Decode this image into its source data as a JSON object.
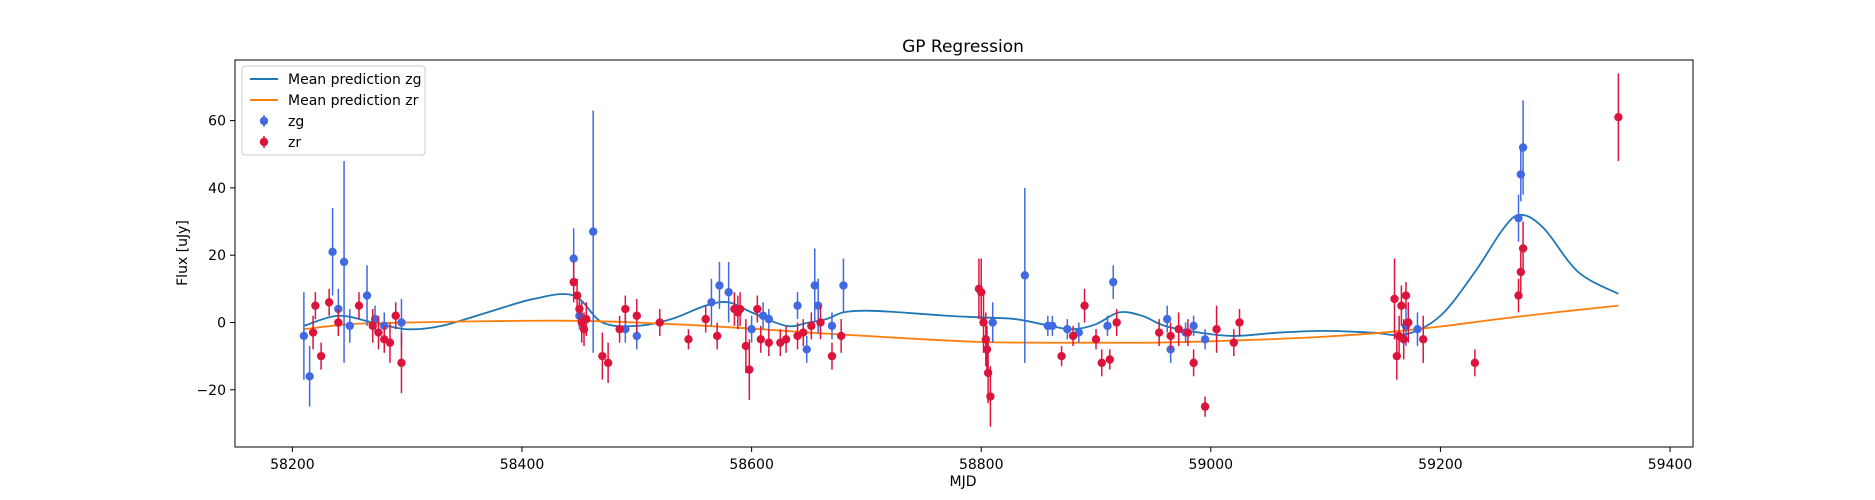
{
  "chart_data": {
    "type": "scatter",
    "title": "GP Regression",
    "xlabel": "MJD",
    "ylabel": "Flux [uJy]",
    "xlim": [
      58150,
      59420
    ],
    "ylim": [
      -37,
      78
    ],
    "x_ticks": [
      58200,
      58400,
      58600,
      58800,
      59000,
      59200,
      59400
    ],
    "y_ticks": [
      -20,
      0,
      20,
      40,
      60
    ],
    "grid": false,
    "legend_position": "top-left",
    "series": [
      {
        "name": "Mean prediction zg",
        "kind": "line",
        "color": "#1f77b4",
        "x": [
          58210,
          58240,
          58270,
          58300,
          58330,
          58370,
          58410,
          58445,
          58470,
          58500,
          58530,
          58560,
          58580,
          58600,
          58630,
          58650,
          58665,
          58680,
          58700,
          58730,
          58770,
          58800,
          58830,
          58860,
          58880,
          58900,
          58920,
          58940,
          58960,
          58990,
          59020,
          59060,
          59100,
          59140,
          59170,
          59200,
          59230,
          59255,
          59270,
          59290,
          59320,
          59355
        ],
        "y": [
          -1,
          2,
          0,
          -2,
          -1,
          3,
          7,
          8,
          0,
          -1,
          1,
          5,
          6,
          3,
          -1,
          0,
          1,
          3,
          3.5,
          3,
          2,
          1.5,
          1,
          -1,
          -2,
          -0.5,
          3,
          2,
          -1,
          -3,
          -4,
          -3,
          -2.5,
          -3,
          -3.5,
          2,
          15,
          28,
          32,
          28,
          15,
          8.5
        ]
      },
      {
        "name": "Mean prediction zr",
        "kind": "line",
        "color": "#ff7f0e",
        "x": [
          58210,
          58250,
          58300,
          58350,
          58400,
          58450,
          58500,
          58550,
          58600,
          58650,
          58700,
          58750,
          58800,
          58850,
          58900,
          58950,
          59000,
          59050,
          59100,
          59150,
          59200,
          59250,
          59300,
          59355
        ],
        "y": [
          -2,
          -0.5,
          0,
          0.3,
          0.5,
          0.5,
          0,
          -0.8,
          -1.8,
          -3,
          -4,
          -5,
          -5.8,
          -6,
          -6,
          -6,
          -5.6,
          -5,
          -4.2,
          -3,
          -1.2,
          1,
          3,
          5
        ]
      },
      {
        "name": "zg",
        "kind": "errorbar",
        "color": "#4169e1",
        "points": [
          [
            58210,
            -4,
            13
          ],
          [
            58215,
            -16,
            9
          ],
          [
            58235,
            21,
            13
          ],
          [
            58240,
            4,
            6
          ],
          [
            58245,
            18,
            30
          ],
          [
            58250,
            -1,
            5
          ],
          [
            58265,
            8,
            9
          ],
          [
            58272,
            1,
            4
          ],
          [
            58280,
            -1,
            4
          ],
          [
            58295,
            0,
            7
          ],
          [
            58445,
            19,
            9
          ],
          [
            58450,
            2,
            4
          ],
          [
            58462,
            27,
            36
          ],
          [
            58490,
            -2,
            4
          ],
          [
            58500,
            -4,
            4
          ],
          [
            58565,
            6,
            7
          ],
          [
            58572,
            11,
            7
          ],
          [
            58580,
            9,
            9
          ],
          [
            58600,
            -2,
            4
          ],
          [
            58610,
            2,
            4
          ],
          [
            58615,
            1,
            3
          ],
          [
            58640,
            5,
            4
          ],
          [
            58648,
            -8,
            4
          ],
          [
            58655,
            11,
            11
          ],
          [
            58658,
            5,
            8
          ],
          [
            58670,
            -1,
            4
          ],
          [
            58680,
            11,
            8
          ],
          [
            58810,
            0,
            6
          ],
          [
            58838,
            14,
            26
          ],
          [
            58858,
            -1,
            3
          ],
          [
            58862,
            -1,
            3
          ],
          [
            58875,
            -2,
            3
          ],
          [
            58885,
            -3,
            3
          ],
          [
            58910,
            -1,
            3
          ],
          [
            58915,
            12,
            5
          ],
          [
            58962,
            1,
            4
          ],
          [
            58965,
            -8,
            4
          ],
          [
            58978,
            -3,
            3
          ],
          [
            58985,
            -1,
            3
          ],
          [
            58995,
            -5,
            3
          ],
          [
            59170,
            -1,
            6
          ],
          [
            59180,
            -2,
            5
          ],
          [
            59268,
            31,
            7
          ],
          [
            59270,
            44,
            8
          ],
          [
            59272,
            52,
            14
          ]
        ]
      },
      {
        "name": "zr",
        "kind": "errorbar",
        "color": "#dc143c",
        "points": [
          [
            58218,
            -3,
            5
          ],
          [
            58220,
            5,
            4
          ],
          [
            58225,
            -10,
            4
          ],
          [
            58232,
            6,
            4
          ],
          [
            58240,
            0,
            4
          ],
          [
            58258,
            5,
            4
          ],
          [
            58270,
            -1,
            5
          ],
          [
            58275,
            -3,
            5
          ],
          [
            58280,
            -5,
            4
          ],
          [
            58285,
            -6,
            6
          ],
          [
            58290,
            2,
            4
          ],
          [
            58295,
            -12,
            9
          ],
          [
            58445,
            12,
            6
          ],
          [
            58448,
            8,
            5
          ],
          [
            58450,
            4,
            5
          ],
          [
            58452,
            0,
            6
          ],
          [
            58454,
            -2,
            5
          ],
          [
            58456,
            1,
            5
          ],
          [
            58470,
            -10,
            7
          ],
          [
            58475,
            -12,
            6
          ],
          [
            58485,
            -2,
            4
          ],
          [
            58490,
            4,
            4
          ],
          [
            58500,
            2,
            5
          ],
          [
            58520,
            0,
            4
          ],
          [
            58545,
            -5,
            3
          ],
          [
            58560,
            1,
            4
          ],
          [
            58570,
            -4,
            4
          ],
          [
            58585,
            4,
            5
          ],
          [
            58588,
            3,
            5
          ],
          [
            58590,
            4,
            5
          ],
          [
            58595,
            -7,
            8
          ],
          [
            58598,
            -14,
            9
          ],
          [
            58605,
            4,
            4
          ],
          [
            58608,
            -5,
            4
          ],
          [
            58615,
            -6,
            4
          ],
          [
            58625,
            -6,
            4
          ],
          [
            58630,
            -5,
            4
          ],
          [
            58640,
            -4,
            4
          ],
          [
            58645,
            -3,
            4
          ],
          [
            58652,
            -1,
            4
          ],
          [
            58660,
            0,
            5
          ],
          [
            58670,
            -10,
            4
          ],
          [
            58678,
            -4,
            5
          ],
          [
            58798,
            10,
            9
          ],
          [
            58800,
            9,
            10
          ],
          [
            58802,
            0,
            9
          ],
          [
            58804,
            -5,
            8
          ],
          [
            58805,
            -8,
            7
          ],
          [
            58806,
            -15,
            9
          ],
          [
            58808,
            -22,
            9
          ],
          [
            58870,
            -10,
            3
          ],
          [
            58880,
            -4,
            3
          ],
          [
            58890,
            5,
            5
          ],
          [
            58900,
            -5,
            3
          ],
          [
            58905,
            -12,
            4
          ],
          [
            58912,
            -11,
            3
          ],
          [
            58918,
            0,
            4
          ],
          [
            58955,
            -3,
            4
          ],
          [
            58965,
            -4,
            4
          ],
          [
            58972,
            -2,
            5
          ],
          [
            58980,
            -3,
            4
          ],
          [
            58985,
            -12,
            4
          ],
          [
            58995,
            -25,
            3
          ],
          [
            59005,
            -2,
            7
          ],
          [
            59020,
            -6,
            4
          ],
          [
            59025,
            0,
            4
          ],
          [
            59160,
            7,
            12
          ],
          [
            59162,
            -10,
            7
          ],
          [
            59164,
            -4,
            6
          ],
          [
            59166,
            5,
            6
          ],
          [
            59168,
            -5,
            6
          ],
          [
            59170,
            8,
            4
          ],
          [
            59172,
            0,
            6
          ],
          [
            59185,
            -5,
            7
          ],
          [
            59230,
            -12,
            4
          ],
          [
            59268,
            8,
            5
          ],
          [
            59270,
            15,
            6
          ],
          [
            59272,
            22,
            8
          ],
          [
            59355,
            61,
            13
          ]
        ]
      }
    ]
  }
}
